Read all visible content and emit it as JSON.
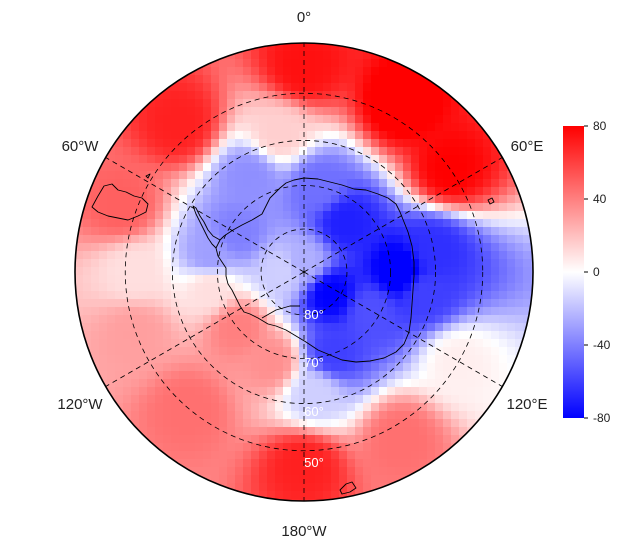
{
  "map": {
    "projection": "south polar stereographic",
    "longitude_labels": {
      "top": "0°",
      "upper_left": "60°W",
      "upper_right": "60°E",
      "lower_left": "120°W",
      "lower_right": "120°E",
      "bottom": "180°W"
    },
    "latitude_labels": [
      "80°",
      "70°",
      "60°",
      "50°"
    ],
    "graticule_latitudes": [
      80,
      70,
      60,
      50
    ],
    "outer_latitude": 40,
    "graticule_style": "dashed"
  },
  "colorbar": {
    "min": -80,
    "max": 80,
    "ticks": [
      80,
      40,
      0,
      -40,
      -80
    ],
    "tick_labels": [
      "80",
      "40",
      "0",
      "-40",
      "-80"
    ],
    "colormap": [
      "#0000ff",
      "#ffffff",
      "#ff0000"
    ]
  },
  "field": {
    "description_units": "anomaly values on diverging blue-white-red scale",
    "pattern": [
      {
        "lon": 0,
        "lat": -45,
        "value": 75
      },
      {
        "lon": 30,
        "lat": -47,
        "value": 85
      },
      {
        "lon": 55,
        "lat": -50,
        "value": 80
      },
      {
        "lon": -40,
        "lat": -47,
        "value": 70
      },
      {
        "lon": -70,
        "lat": -47,
        "value": 50
      },
      {
        "lon": -90,
        "lat": -52,
        "value": 10
      },
      {
        "lon": -110,
        "lat": -50,
        "value": 30
      },
      {
        "lon": -140,
        "lat": -50,
        "value": 45
      },
      {
        "lon": 180,
        "lat": -47,
        "value": 70
      },
      {
        "lon": 150,
        "lat": -47,
        "value": 45
      },
      {
        "lon": 120,
        "lat": -50,
        "value": 5
      },
      {
        "lon": 100,
        "lat": -62,
        "value": -60
      },
      {
        "lon": 80,
        "lat": -60,
        "value": -65
      },
      {
        "lon": 90,
        "lat": -68,
        "value": -85
      },
      {
        "lon": 120,
        "lat": -72,
        "value": -55
      },
      {
        "lon": 160,
        "lat": -70,
        "value": -60
      },
      {
        "lon": 175,
        "lat": -62,
        "value": -15
      },
      {
        "lon": 130,
        "lat": -82,
        "value": -80
      },
      {
        "lon": 40,
        "lat": -75,
        "value": -70
      },
      {
        "lon": 10,
        "lat": -70,
        "value": -45
      },
      {
        "lon": -30,
        "lat": -65,
        "value": -35
      },
      {
        "lon": -60,
        "lat": -72,
        "value": -40
      },
      {
        "lon": -80,
        "lat": -68,
        "value": -30
      },
      {
        "lon": -100,
        "lat": -68,
        "value": 10
      },
      {
        "lon": -130,
        "lat": -70,
        "value": 40
      },
      {
        "lon": -160,
        "lat": -68,
        "value": 35
      },
      {
        "lon": -10,
        "lat": -58,
        "value": 15
      },
      {
        "lon": 0,
        "lat": -88,
        "value": -25
      },
      {
        "lon": -90,
        "lat": -85,
        "value": -15
      }
    ]
  }
}
